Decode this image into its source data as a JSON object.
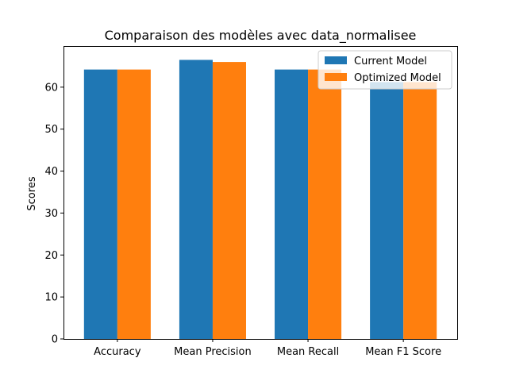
{
  "chart_data": {
    "type": "bar",
    "title": "Comparaison des modèles avec data_normalisee",
    "xlabel": "",
    "ylabel": "Scores",
    "categories": [
      "Accuracy",
      "Mean Precision",
      "Mean Recall",
      "Mean F1 Score"
    ],
    "series": [
      {
        "name": "Current Model",
        "color": "#1f77b4",
        "values": [
          64.2,
          66.5,
          64.2,
          61.2
        ]
      },
      {
        "name": "Optimized Model",
        "color": "#ff7f0e",
        "values": [
          64.2,
          66.0,
          64.2,
          61.2
        ]
      }
    ],
    "ylim": [
      0,
      69.8
    ],
    "yticks": [
      0,
      10,
      20,
      30,
      40,
      50,
      60
    ],
    "grid": false,
    "legend_position": "top-right"
  }
}
